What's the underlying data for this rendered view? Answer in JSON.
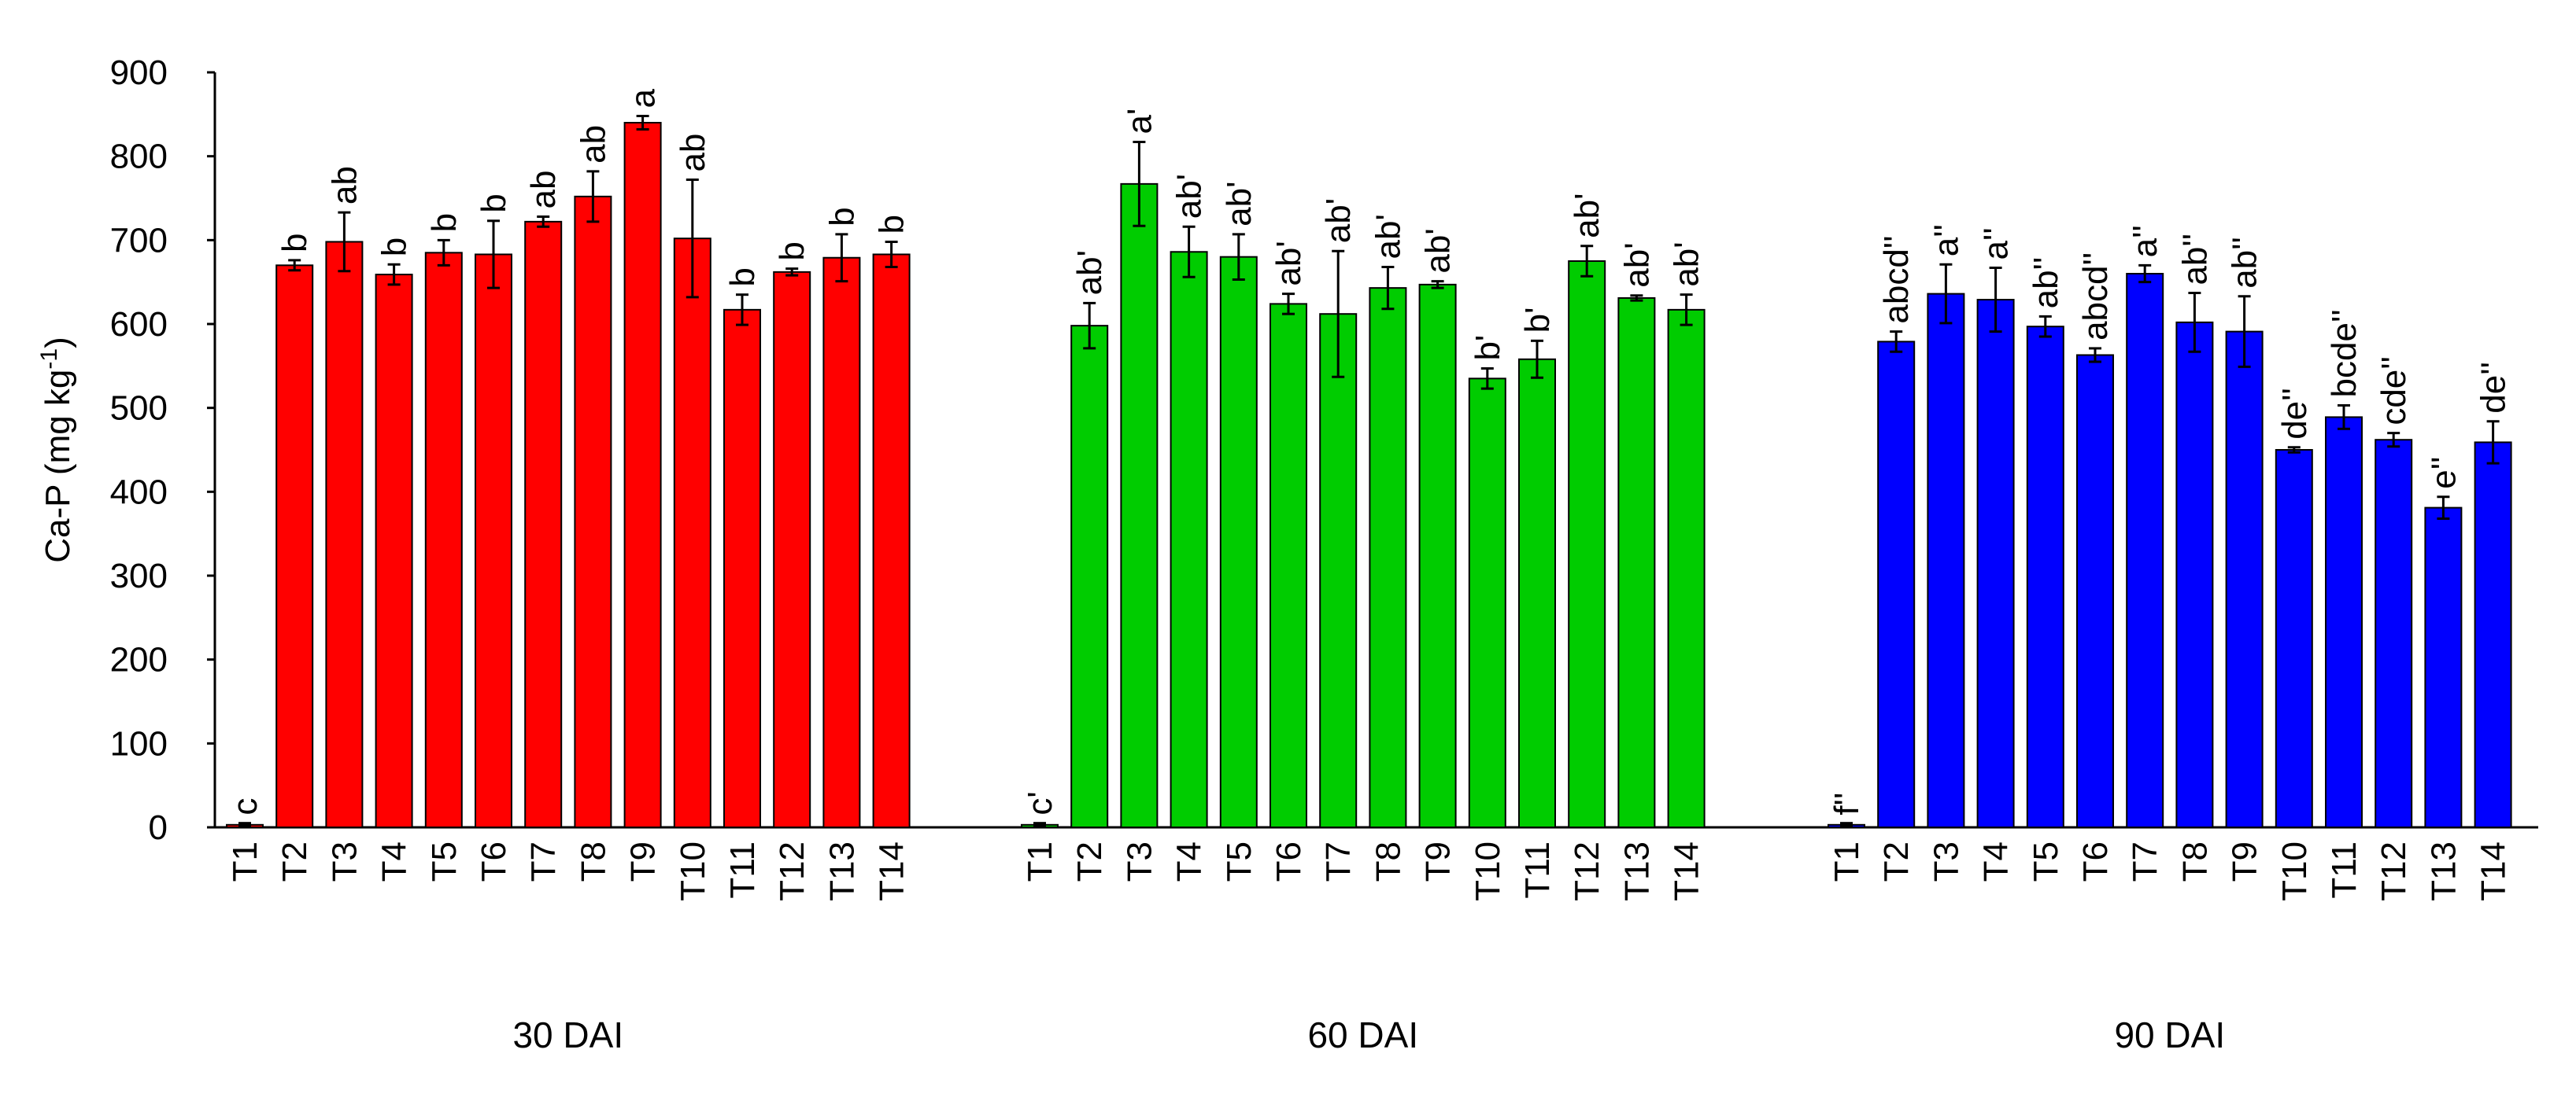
{
  "chart_data": {
    "type": "bar",
    "title": "",
    "ylabel": "Ca-P (mg kg",
    "ylabel_sup": "-1",
    "ylabel_close": ")",
    "ylim": [
      0,
      900
    ],
    "yticks": [
      0,
      100,
      200,
      300,
      400,
      500,
      600,
      700,
      800,
      900
    ],
    "grid": false,
    "categories": [
      "T1",
      "T2",
      "T3",
      "T4",
      "T5",
      "T6",
      "T7",
      "T8",
      "T9",
      "T10",
      "T11",
      "T12",
      "T13",
      "T14"
    ],
    "groups": [
      {
        "name": "30 DAI",
        "color": "#ff0000",
        "values": [
          3,
          670,
          698,
          659,
          685,
          683,
          722,
          752,
          840,
          702,
          617,
          662,
          679,
          683
        ],
        "errors": [
          2,
          6,
          35,
          12,
          15,
          40,
          6,
          30,
          8,
          70,
          18,
          4,
          28,
          15
        ],
        "labels": [
          "c",
          "b",
          "ab",
          "b",
          "b",
          "b",
          "ab",
          "ab",
          "a",
          "ab",
          "b",
          "b",
          "b",
          "b"
        ]
      },
      {
        "name": "60 DAI",
        "color": "#00cc00",
        "values": [
          3,
          598,
          767,
          686,
          680,
          624,
          612,
          643,
          647,
          535,
          558,
          675,
          631,
          617
        ],
        "errors": [
          2,
          27,
          50,
          30,
          27,
          12,
          75,
          25,
          4,
          12,
          22,
          18,
          3,
          18
        ],
        "labels": [
          "c'",
          "ab'",
          "a'",
          "ab'",
          "ab'",
          "ab'",
          "ab'",
          "ab'",
          "ab'",
          "b'",
          "b'",
          "ab'",
          "ab'",
          "ab'"
        ]
      },
      {
        "name": "90 DAI",
        "color": "#0000ff",
        "values": [
          3,
          579,
          636,
          629,
          597,
          563,
          660,
          602,
          591,
          450,
          489,
          462,
          381,
          459
        ],
        "errors": [
          2,
          12,
          35,
          38,
          12,
          8,
          10,
          35,
          42,
          3,
          14,
          8,
          13,
          25
        ],
        "labels": [
          "f''",
          "abcd''",
          "a''",
          "a''",
          "ab''",
          "abcd''",
          "a''",
          "ab''",
          "ab''",
          "de''",
          "bcde''",
          "cde''",
          "e''",
          "de''"
        ]
      }
    ]
  }
}
